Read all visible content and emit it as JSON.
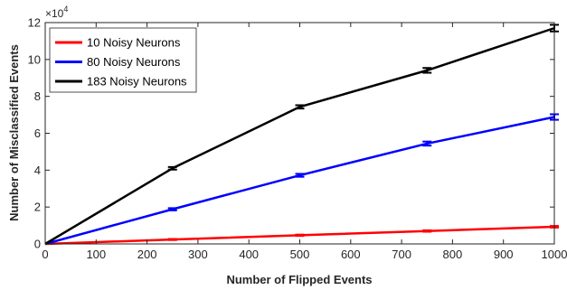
{
  "chart_data": {
    "type": "line",
    "title": "",
    "xlabel": "Number of Flipped Events",
    "ylabel": "Number of Misclassified Events",
    "xlim": [
      0,
      1000
    ],
    "ylim": [
      0,
      120000
    ],
    "x_ticks": [
      0,
      100,
      200,
      300,
      400,
      500,
      600,
      700,
      800,
      900,
      1000
    ],
    "x_tick_labels": [
      "0",
      "100",
      "200",
      "300",
      "400",
      "500",
      "600",
      "700",
      "800",
      "900",
      "1000"
    ],
    "y_ticks": [
      0,
      20000,
      40000,
      60000,
      80000,
      100000,
      120000
    ],
    "y_tick_labels": [
      "0",
      "2",
      "4",
      "6",
      "8",
      "10",
      "12"
    ],
    "y_exponent_base": "×10",
    "y_exponent_power": "4",
    "grid": false,
    "legend_position": "top-left",
    "x": [
      0,
      250,
      500,
      750,
      1000
    ],
    "series": [
      {
        "name": "10 Noisy Neurons",
        "color": "#ff0000",
        "values": [
          0,
          2400,
          4700,
          7000,
          9300
        ],
        "errors": [
          0,
          300,
          350,
          400,
          450
        ]
      },
      {
        "name": "80 Noisy Neurons",
        "color": "#0000ff",
        "values": [
          0,
          18800,
          37200,
          54400,
          68800
        ],
        "errors": [
          0,
          600,
          800,
          1100,
          1500
        ]
      },
      {
        "name": "183 Noisy Neurons",
        "color": "#000000",
        "values": [
          0,
          41000,
          74300,
          94100,
          117000
        ],
        "errors": [
          0,
          700,
          900,
          1300,
          1800
        ]
      }
    ]
  }
}
